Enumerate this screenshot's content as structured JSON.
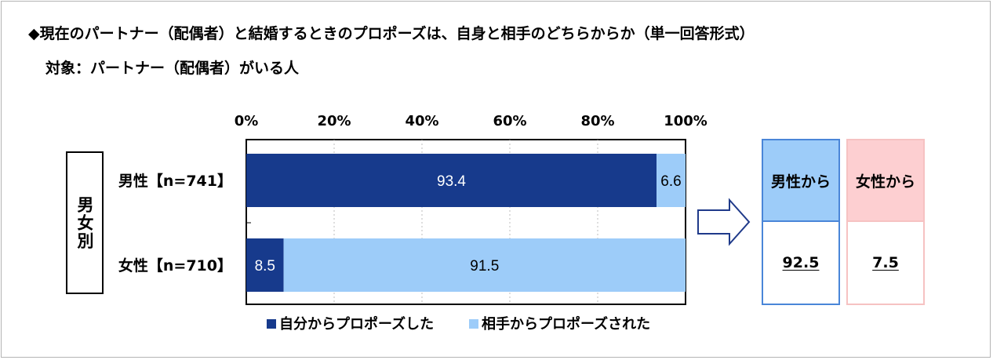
{
  "title": "◆現在のパートナー（配偶者）と結婚するときのプロポーズは、自身と相手のどちらからか（単一回答形式）",
  "subtitle": "対象：パートナー（配偶者）がいる人",
  "group_label": "男女別",
  "chart_data": {
    "type": "bar",
    "orientation": "horizontal",
    "stacked": true,
    "percent_stacked": true,
    "categories": [
      "男性【n=741】",
      "女性【n=710】"
    ],
    "series": [
      {
        "name": "自分からプロポーズした",
        "values": [
          93.4,
          8.5
        ],
        "color": "#173a8c",
        "label_color": "#ffffff"
      },
      {
        "name": "相手からプロポーズされた",
        "values": [
          6.6,
          91.5
        ],
        "color": "#9dccf9",
        "label_color": "#000000"
      }
    ],
    "value_labels": [
      [
        "93.4",
        "8.5"
      ],
      [
        "6.6",
        "91.5"
      ]
    ],
    "x_ticks": [
      "0%",
      "20%",
      "40%",
      "60%",
      "80%",
      "100%"
    ],
    "xlim": [
      0,
      100
    ],
    "grid": true,
    "legend_position": "bottom"
  },
  "summary": {
    "columns": [
      {
        "header": "男性から",
        "value": "92.5"
      },
      {
        "header": "女性から",
        "value": "7.5"
      }
    ]
  },
  "colors": {
    "male_header_bg": "#9dccf9",
    "male_border": "#4a86d8",
    "female_header_bg": "#fdcfd1",
    "female_border": "#f6c2c2",
    "arrow_stroke": "#1f3a8a"
  },
  "icons": {
    "arrow": "right-arrow-icon"
  }
}
